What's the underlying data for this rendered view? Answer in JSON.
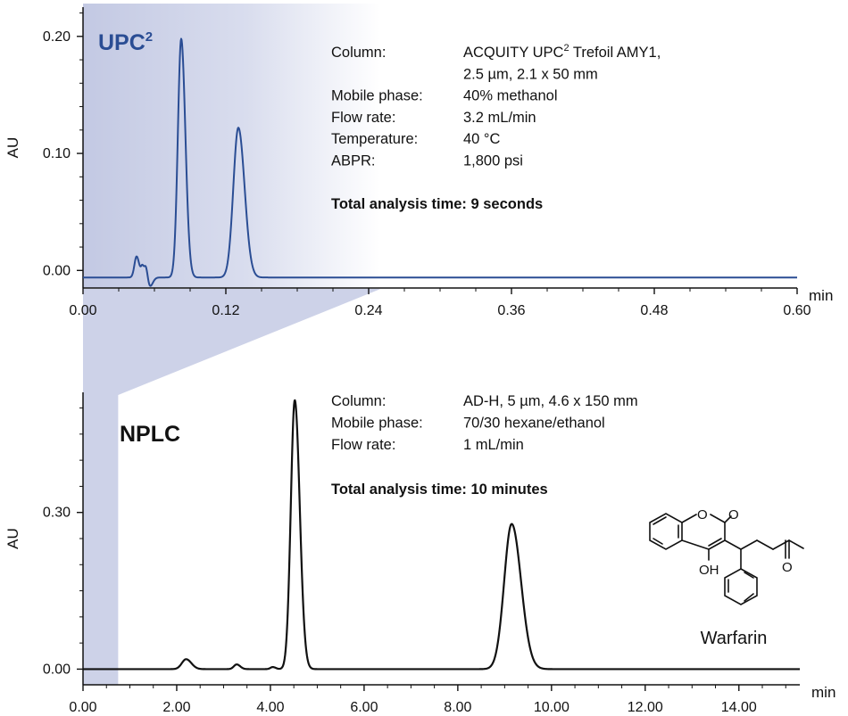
{
  "chart_data": [
    {
      "type": "line",
      "panel": "UPC2",
      "title_main": "UPC",
      "title_sup": "2",
      "color": "#2a4d94",
      "ylabel": "AU",
      "xlabel": "min",
      "xlim": [
        0,
        0.6
      ],
      "ylim": [
        -0.015,
        0.225
      ],
      "xticks": [
        0.0,
        0.12,
        0.24,
        0.36,
        0.48,
        0.6
      ],
      "xtick_labels": [
        "0.00",
        "0.12",
        "0.24",
        "0.36",
        "0.48",
        "0.60"
      ],
      "yticks": [
        0.0,
        0.1,
        0.2
      ],
      "ytick_labels": [
        "0.00",
        "0.10",
        "0.20"
      ],
      "shaded_region_x": [
        0.0,
        0.25
      ],
      "baseline": -0.006,
      "peaks": [
        {
          "x": 0.045,
          "height": 0.018,
          "width": 0.0018
        },
        {
          "x": 0.05,
          "height": 0.009,
          "width": 0.0012
        },
        {
          "x": 0.053,
          "height": 0.01,
          "width": 0.0012
        },
        {
          "x": 0.056,
          "height": -0.008,
          "width": 0.002
        },
        {
          "x": 0.0825,
          "height": 0.204,
          "width": 0.0028
        },
        {
          "x": 0.1305,
          "height": 0.128,
          "width": 0.0042
        }
      ],
      "info": [
        {
          "key": "Column:",
          "value": "ACQUITY UPC",
          "value_sup": "2",
          "value_rest": " Trefoil AMY1,"
        },
        {
          "key": "",
          "value": "2.5 µm, 2.1 x 50 mm"
        },
        {
          "key": "Mobile phase:",
          "value": "40% methanol"
        },
        {
          "key": "Flow rate:",
          "value": "3.2 mL/min"
        },
        {
          "key": "Temperature:",
          "value": "40 °C"
        },
        {
          "key": "ABPR:",
          "value": "1,800 psi"
        }
      ],
      "summary": "Total analysis time: 9 seconds"
    },
    {
      "type": "line",
      "panel": "NPLC",
      "title_main": "NPLC",
      "color": "#111111",
      "ylabel": "AU",
      "xlabel": "min",
      "xlim": [
        0,
        15.3
      ],
      "ylim": [
        -0.03,
        0.53
      ],
      "xticks": [
        0,
        2,
        4,
        6,
        8,
        10,
        12,
        14
      ],
      "xtick_labels": [
        "0.00",
        "2.00",
        "4.00",
        "6.00",
        "8.00",
        "10.00",
        "12.00",
        "14.00"
      ],
      "yticks": [
        0.0,
        0.3
      ],
      "ytick_labels": [
        "0.00",
        "0.30"
      ],
      "shaded_region_x": [
        0.0,
        0.75
      ],
      "baseline": 0.0,
      "peaks": [
        {
          "x": 2.2,
          "height": 0.019,
          "width": 0.09
        },
        {
          "x": 3.28,
          "height": 0.009,
          "width": 0.06
        },
        {
          "x": 4.05,
          "height": 0.004,
          "width": 0.05
        },
        {
          "x": 4.52,
          "height": 0.515,
          "width": 0.085
        },
        {
          "x": 9.15,
          "height": 0.278,
          "width": 0.16
        }
      ],
      "info": [
        {
          "key": "Column:",
          "value": "AD-H, 5 µm, 4.6 x 150 mm"
        },
        {
          "key": "Mobile phase:",
          "value": "70/30 hexane/ethanol"
        },
        {
          "key": "Flow rate:",
          "value": "1 mL/min"
        }
      ],
      "summary": "Total analysis time: 10 minutes"
    }
  ],
  "zoom_connector_color": "#c9cfe6",
  "structure": {
    "compound": "Warfarin",
    "atom_labels": [
      "O",
      "O",
      "OH",
      "O"
    ]
  }
}
